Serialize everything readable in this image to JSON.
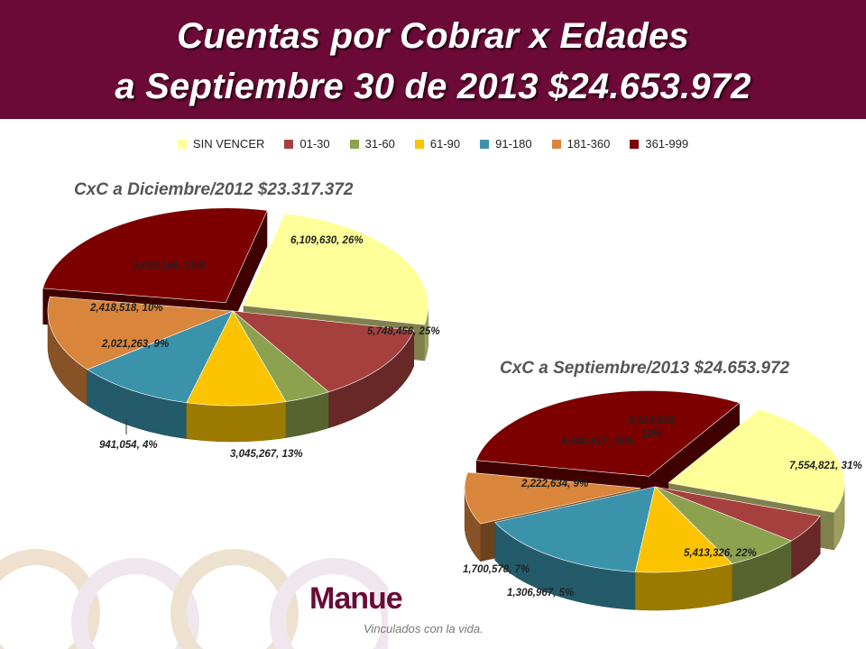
{
  "header": {
    "title_line1": "Cuentas por Cobrar x Edades",
    "title_line2": "a Septiembre 30 de 2013 $24.653.972",
    "background": "#6b0a36"
  },
  "legend": [
    {
      "label": "SIN VENCER",
      "color": "#ffff99"
    },
    {
      "label": "01-30",
      "color": "#a6403f"
    },
    {
      "label": "31-60",
      "color": "#8ca24e"
    },
    {
      "label": "61-90",
      "color": "#fcc400"
    },
    {
      "label": "91-180",
      "color": "#3a93ab"
    },
    {
      "label": "181-360",
      "color": "#d9853b"
    },
    {
      "label": "361-999",
      "color": "#7d0000"
    }
  ],
  "chart_data": [
    {
      "type": "pie",
      "title": "CxC a Diciembre/2012 $23.317.372",
      "categories": [
        "SIN VENCER",
        "01-30",
        "31-60",
        "61-90",
        "91-180",
        "181-360",
        "361-999"
      ],
      "values": [
        5748456,
        3045267,
        941054,
        2021263,
        2418518,
        3033184,
        6109630
      ],
      "labels": [
        "5,748,456, 25%",
        "3,045,267, 13%",
        "941,054, 4%",
        "2,021,263, 9%",
        "2,418,518, 10%",
        "3,033,184, 13%",
        "6,109,630, 26%"
      ],
      "exploded": [
        "SIN VENCER",
        "361-999"
      ]
    },
    {
      "type": "pie",
      "title": "CxC a Septiembre/2013 $24.653.972",
      "categories": [
        "SIN VENCER",
        "01-30",
        "31-60",
        "61-90",
        "91-180",
        "181-360",
        "361-999"
      ],
      "values": [
        5413326,
        1306967,
        1700578,
        2222634,
        4040817,
        2414829,
        7554821
      ],
      "labels": [
        "5,413,326, 22%",
        "1,306,967, 5%",
        "1,700,578, 7%",
        "2,222,634, 9%",
        "4,040,817, 16%",
        "2,414,829, 10%",
        "7,554,821, 31%"
      ],
      "exploded": [
        "SIN VENCER",
        "361-999",
        "181-360"
      ]
    }
  ],
  "footer": {
    "logo_text": "Manue",
    "tagline": "Vinculados con la vida."
  }
}
